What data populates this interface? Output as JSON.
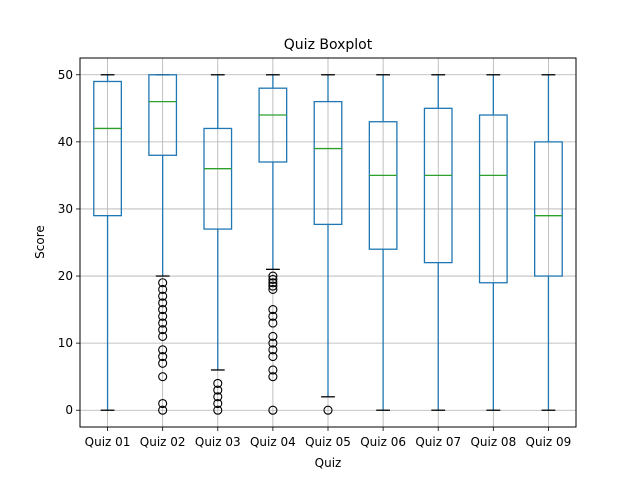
{
  "chart_data": {
    "type": "boxplot",
    "title": "Quiz Boxplot",
    "xlabel": "Quiz",
    "ylabel": "Score",
    "ylim": [
      -2.5,
      52.5
    ],
    "yticks": [
      0,
      10,
      20,
      30,
      40,
      50
    ],
    "grid": true,
    "categories": [
      "Quiz 01",
      "Quiz 02",
      "Quiz 03",
      "Quiz 04",
      "Quiz 05",
      "Quiz 06",
      "Quiz 07",
      "Quiz 08",
      "Quiz 09"
    ],
    "boxes": [
      {
        "name": "Quiz 01",
        "q1": 29,
        "median": 42,
        "q3": 49,
        "whisker_low": 0,
        "whisker_high": 50,
        "outliers": []
      },
      {
        "name": "Quiz 02",
        "q1": 38,
        "median": 46,
        "q3": 50,
        "whisker_low": 20,
        "whisker_high": 50,
        "outliers": [
          19,
          18,
          17,
          16,
          15,
          14,
          13,
          12,
          11,
          9,
          8,
          7,
          5,
          1,
          0
        ]
      },
      {
        "name": "Quiz 03",
        "q1": 27,
        "median": 36,
        "q3": 42,
        "whisker_low": 6,
        "whisker_high": 50,
        "outliers": [
          4,
          3,
          2,
          1,
          0
        ]
      },
      {
        "name": "Quiz 04",
        "q1": 37,
        "median": 44,
        "q3": 48,
        "whisker_low": 21,
        "whisker_high": 50,
        "outliers": [
          20,
          19.5,
          19,
          18.5,
          18,
          15,
          14,
          13,
          11,
          10,
          9,
          8,
          6,
          5,
          0
        ]
      },
      {
        "name": "Quiz 05",
        "q1": 27.7,
        "median": 39,
        "q3": 46,
        "whisker_low": 2,
        "whisker_high": 50,
        "outliers": [
          0
        ]
      },
      {
        "name": "Quiz 06",
        "q1": 24,
        "median": 35,
        "q3": 43,
        "whisker_low": 0,
        "whisker_high": 50,
        "outliers": []
      },
      {
        "name": "Quiz 07",
        "q1": 22,
        "median": 35,
        "q3": 45,
        "whisker_low": 0,
        "whisker_high": 50,
        "outliers": []
      },
      {
        "name": "Quiz 08",
        "q1": 19,
        "median": 35,
        "q3": 44,
        "whisker_low": 0,
        "whisker_high": 50,
        "outliers": []
      },
      {
        "name": "Quiz 09",
        "q1": 20,
        "median": 29,
        "q3": 40,
        "whisker_low": 0,
        "whisker_high": 50,
        "outliers": []
      }
    ],
    "colors": {
      "box": "#1f77b4",
      "median": "#2ca02c",
      "whisker": "#1f77b4",
      "cap": "#000000",
      "outlier": "#000000",
      "grid": "#b0b0b0",
      "axis": "#000000"
    }
  }
}
